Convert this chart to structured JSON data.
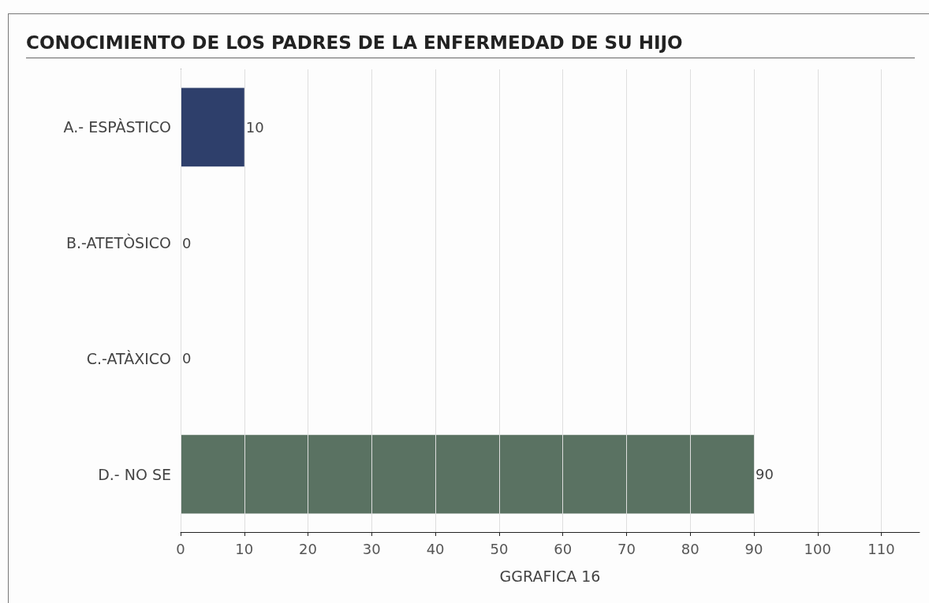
{
  "chart_data": {
    "type": "bar",
    "orientation": "horizontal",
    "title": "CONOCIMIENTO DE LOS PADRES DE LA ENFERMEDAD DE SU HIJO",
    "xlabel": "GGRAFICA 16",
    "categories": [
      "A.- ESPÀSTICO",
      "B.-ATETÒSICO",
      "C.-ATÀXICO",
      "D.- NO SE"
    ],
    "values": [
      10,
      0,
      0,
      90
    ],
    "colors": [
      "#2e3f6b",
      null,
      null,
      "#5a7262"
    ],
    "xlim": [
      0,
      116
    ],
    "xticks": [
      0,
      10,
      20,
      30,
      40,
      50,
      60,
      70,
      80,
      90,
      100,
      110
    ],
    "grid": "x",
    "data_labels": true
  }
}
